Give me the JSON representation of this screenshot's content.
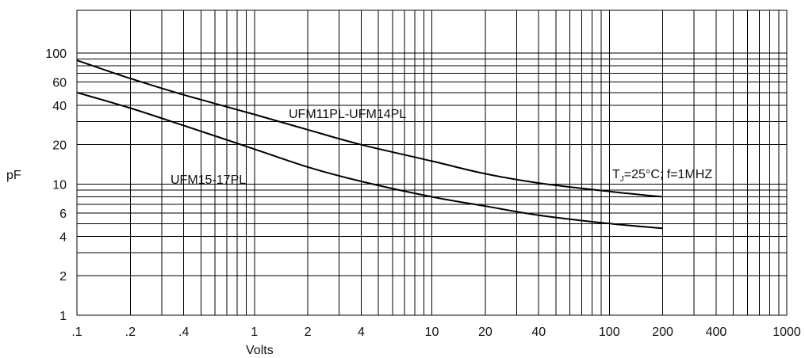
{
  "chart_data": {
    "type": "line",
    "title": "",
    "xlabel": "Volts",
    "ylabel": "pF",
    "xscale": "log",
    "yscale": "log",
    "xlim": [
      0.1,
      1000
    ],
    "ylim": [
      1,
      300
    ],
    "grid": true,
    "x_ticks": [
      {
        "value": 0.1,
        "label": ".1"
      },
      {
        "value": 0.2,
        "label": ".2"
      },
      {
        "value": 0.4,
        "label": ".4"
      },
      {
        "value": 1,
        "label": "1"
      },
      {
        "value": 2,
        "label": "2"
      },
      {
        "value": 4,
        "label": "4"
      },
      {
        "value": 10,
        "label": "10"
      },
      {
        "value": 20,
        "label": "20"
      },
      {
        "value": 40,
        "label": "40"
      },
      {
        "value": 100,
        "label": "100"
      },
      {
        "value": 200,
        "label": "200"
      },
      {
        "value": 400,
        "label": "400"
      },
      {
        "value": 1000,
        "label": "1000"
      }
    ],
    "y_ticks": [
      {
        "value": 1,
        "label": "1"
      },
      {
        "value": 2,
        "label": "2"
      },
      {
        "value": 4,
        "label": "4"
      },
      {
        "value": 6,
        "label": "6"
      },
      {
        "value": 10,
        "label": "10"
      },
      {
        "value": 20,
        "label": "20"
      },
      {
        "value": 40,
        "label": "40"
      },
      {
        "value": 60,
        "label": "60"
      },
      {
        "value": 100,
        "label": "100"
      }
    ],
    "series": [
      {
        "name": "UFM11PL-UFM14PL",
        "x": [
          0.1,
          0.2,
          0.4,
          1,
          2,
          4,
          10,
          20,
          40,
          100,
          200
        ],
        "y": [
          88,
          64,
          48,
          34,
          26,
          20,
          15,
          12,
          10.2,
          8.8,
          8
        ]
      },
      {
        "name": "UFM15-17PL",
        "x": [
          0.1,
          0.2,
          0.4,
          1,
          2,
          4,
          10,
          20,
          40,
          100,
          200
        ],
        "y": [
          50,
          38,
          28,
          18.5,
          13.5,
          10.5,
          8,
          6.8,
          5.8,
          5,
          4.6
        ]
      }
    ],
    "annotations": [
      {
        "text": "UFM11PL-UFM14PL"
      },
      {
        "text": "UFM15-17PL"
      },
      {
        "text_main": "T",
        "text_sub": "J",
        "text_rest": "=25°C;  f=1MHZ"
      }
    ]
  }
}
